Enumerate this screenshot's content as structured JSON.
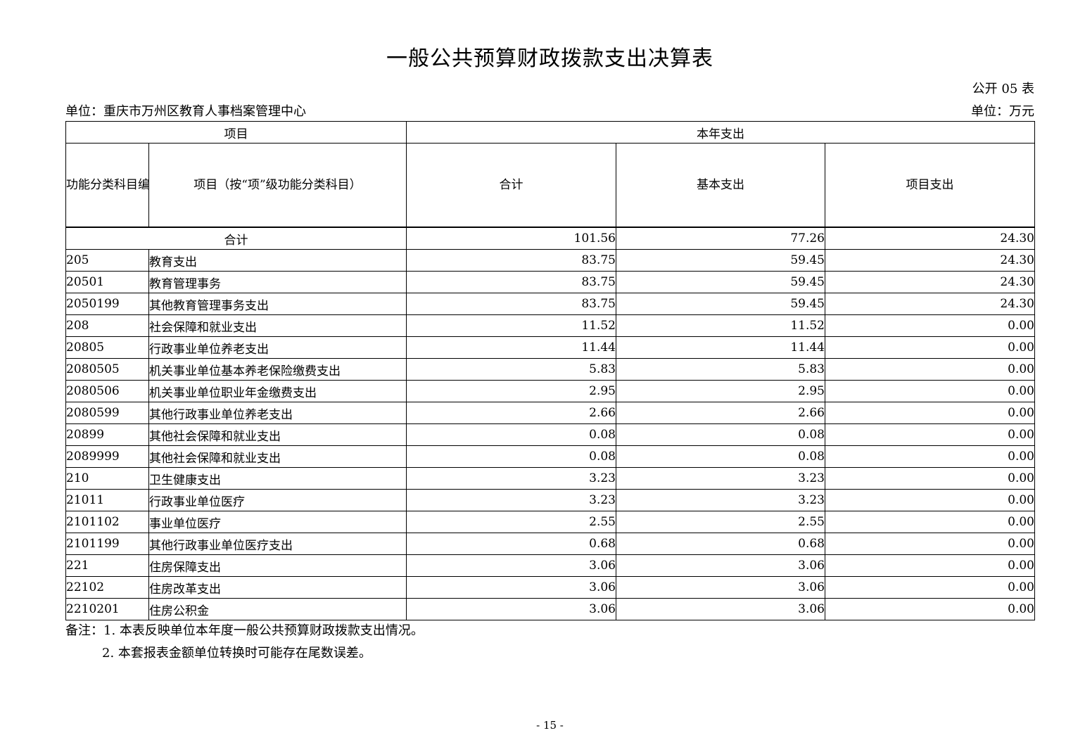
{
  "page": {
    "title": "一般公共预算财政拨款支出决算表",
    "form_number": "公开 05 表",
    "org_unit": "单位：重庆市万州区教育人事档案管理中心",
    "currency_unit": "单位：万元",
    "page_number": "- 15 -"
  },
  "table": {
    "header": {
      "group_left": "项目",
      "group_right": "本年支出",
      "col_code": "功能分类科目编码",
      "col_item": "项目（按“项”级功能分类科目）",
      "col_total": "合计",
      "col_basic": "基本支出",
      "col_project": "项目支出"
    },
    "total_row": {
      "label": "合计",
      "total": "101.56",
      "basic": "77.26",
      "project": "24.30"
    },
    "rows": [
      {
        "code": "205",
        "name": "教育支出",
        "total": "83.75",
        "basic": "59.45",
        "project": "24.30"
      },
      {
        "code": "20501",
        "name": "教育管理事务",
        "total": "83.75",
        "basic": "59.45",
        "project": "24.30"
      },
      {
        "code": "2050199",
        "name": "其他教育管理事务支出",
        "total": "83.75",
        "basic": "59.45",
        "project": "24.30"
      },
      {
        "code": "208",
        "name": "社会保障和就业支出",
        "total": "11.52",
        "basic": "11.52",
        "project": "0.00"
      },
      {
        "code": "20805",
        "name": "行政事业单位养老支出",
        "total": "11.44",
        "basic": "11.44",
        "project": "0.00"
      },
      {
        "code": "2080505",
        "name": "机关事业单位基本养老保险缴费支出",
        "total": "5.83",
        "basic": "5.83",
        "project": "0.00"
      },
      {
        "code": "2080506",
        "name": "机关事业单位职业年金缴费支出",
        "total": "2.95",
        "basic": "2.95",
        "project": "0.00"
      },
      {
        "code": "2080599",
        "name": "其他行政事业单位养老支出",
        "total": "2.66",
        "basic": "2.66",
        "project": "0.00"
      },
      {
        "code": "20899",
        "name": "其他社会保障和就业支出",
        "total": "0.08",
        "basic": "0.08",
        "project": "0.00"
      },
      {
        "code": "2089999",
        "name": "其他社会保障和就业支出",
        "total": "0.08",
        "basic": "0.08",
        "project": "0.00"
      },
      {
        "code": "210",
        "name": "卫生健康支出",
        "total": "3.23",
        "basic": "3.23",
        "project": "0.00"
      },
      {
        "code": "21011",
        "name": "行政事业单位医疗",
        "total": "3.23",
        "basic": "3.23",
        "project": "0.00"
      },
      {
        "code": "2101102",
        "name": "事业单位医疗",
        "total": "2.55",
        "basic": "2.55",
        "project": "0.00"
      },
      {
        "code": "2101199",
        "name": "其他行政事业单位医疗支出",
        "total": "0.68",
        "basic": "0.68",
        "project": "0.00"
      },
      {
        "code": "221",
        "name": "住房保障支出",
        "total": "3.06",
        "basic": "3.06",
        "project": "0.00"
      },
      {
        "code": "22102",
        "name": "住房改革支出",
        "total": "3.06",
        "basic": "3.06",
        "project": "0.00"
      },
      {
        "code": "2210201",
        "name": "住房公积金",
        "total": "3.06",
        "basic": "3.06",
        "project": "0.00"
      }
    ]
  },
  "notes": {
    "line1": "备注：1. 本表反映单位本年度一般公共预算财政拨款支出情况。",
    "line2": "2. 本套报表金额单位转换时可能存在尾数误差。"
  }
}
